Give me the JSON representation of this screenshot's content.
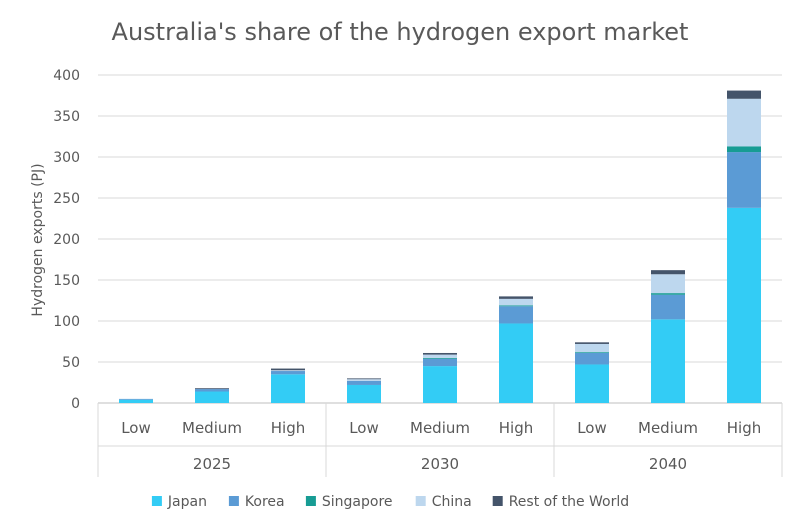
{
  "chart_data": {
    "type": "bar",
    "stacked": true,
    "title": "Australia's share of the hydrogen export market",
    "ylabel": "Hydrogen exports (PJ)",
    "ylim": [
      0,
      400
    ],
    "yticks": [
      0,
      50,
      100,
      150,
      200,
      250,
      300,
      350,
      400
    ],
    "grid": true,
    "legend_position": "bottom",
    "categories": [
      "Low",
      "Medium",
      "High",
      "Low",
      "Medium",
      "High",
      "Low",
      "Medium",
      "High"
    ],
    "groups": [
      {
        "label": "2025",
        "count": 3
      },
      {
        "label": "2030",
        "count": 3
      },
      {
        "label": "2040",
        "count": 3
      }
    ],
    "series": [
      {
        "name": "Japan",
        "color": "#33ccf5",
        "values": [
          4,
          14,
          35,
          22,
          45,
          97,
          47,
          102,
          238
        ]
      },
      {
        "name": "Korea",
        "color": "#5b9bd5",
        "values": [
          1,
          3,
          4,
          5,
          9,
          21,
          14,
          30,
          68
        ]
      },
      {
        "name": "Singapore",
        "color": "#179c94",
        "values": [
          0,
          0,
          0,
          0,
          1,
          1,
          1,
          2,
          7
        ]
      },
      {
        "name": "China",
        "color": "#bdd7ee",
        "values": [
          0,
          0,
          1,
          2,
          4,
          8,
          10,
          23,
          58
        ]
      },
      {
        "name": "Rest of the World",
        "color": "#44546a",
        "values": [
          0,
          1,
          2,
          1,
          2,
          3,
          2,
          5,
          10
        ]
      }
    ]
  }
}
